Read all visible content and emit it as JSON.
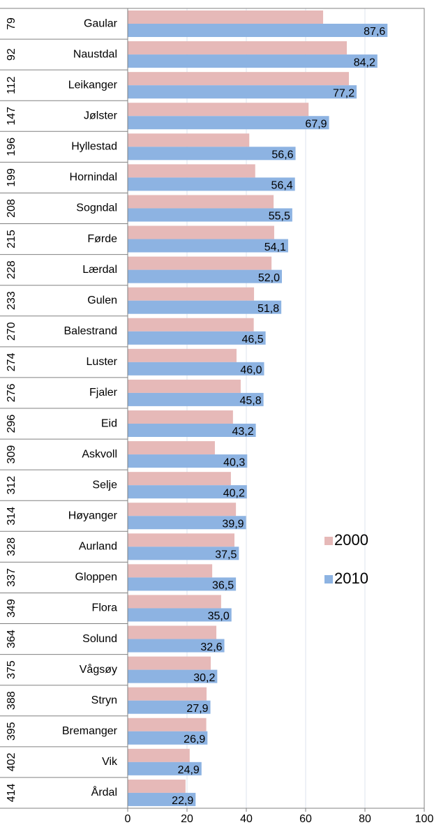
{
  "chart_data": {
    "type": "bar",
    "orientation": "horizontal",
    "ranks": [
      "79",
      "92",
      "112",
      "147",
      "196",
      "199",
      "208",
      "215",
      "228",
      "233",
      "270",
      "274",
      "276",
      "296",
      "309",
      "312",
      "314",
      "328",
      "337",
      "349",
      "364",
      "375",
      "388",
      "395",
      "402",
      "414"
    ],
    "categories": [
      "Gaular",
      "Naustdal",
      "Leikanger",
      "Jølster",
      "Hyllestad",
      "Hornindal",
      "Sogndal",
      "Førde",
      "Lærdal",
      "Gulen",
      "Balestrand",
      "Luster",
      "Fjaler",
      "Eid",
      "Askvoll",
      "Selje",
      "Høyanger",
      "Aurland",
      "Gloppen",
      "Flora",
      "Solund",
      "Vågsøy",
      "Stryn",
      "Bremanger",
      "Vik",
      "Årdal"
    ],
    "series": [
      {
        "name": "2000",
        "color": "#e6b9b8",
        "values": [
          65.9,
          73.9,
          74.6,
          61,
          41,
          43,
          49.2,
          49.4,
          48.5,
          42.6,
          42.5,
          36.7,
          38.1,
          35.5,
          29.4,
          34.8,
          36.5,
          36,
          28.5,
          31.5,
          29.9,
          28,
          26.6,
          26.5,
          20.9,
          19.5
        ]
      },
      {
        "name": "2010",
        "color": "#8db3e2",
        "values": [
          87.6,
          84.2,
          77.2,
          67.9,
          56.6,
          56.4,
          55.5,
          54.1,
          52.0,
          51.8,
          46.5,
          46.0,
          45.8,
          43.2,
          40.3,
          40.2,
          39.9,
          37.5,
          36.5,
          35.0,
          32.6,
          30.2,
          27.9,
          26.9,
          24.9,
          22.9
        ],
        "value_labels": [
          "87,6",
          "84,2",
          "77,2",
          "67,9",
          "56,6",
          "56,4",
          "55,5",
          "54,1",
          "52,0",
          "51,8",
          "46,5",
          "46,0",
          "45,8",
          "43,2",
          "40,3",
          "40,2",
          "39,9",
          "37,5",
          "36,5",
          "35,0",
          "32,6",
          "30,2",
          "27,9",
          "26,9",
          "24,9",
          "22,9"
        ]
      }
    ],
    "xlim": [
      0,
      100
    ],
    "xticks": [
      0,
      20,
      40,
      60,
      80,
      100
    ],
    "grid": true,
    "legend": "right"
  }
}
